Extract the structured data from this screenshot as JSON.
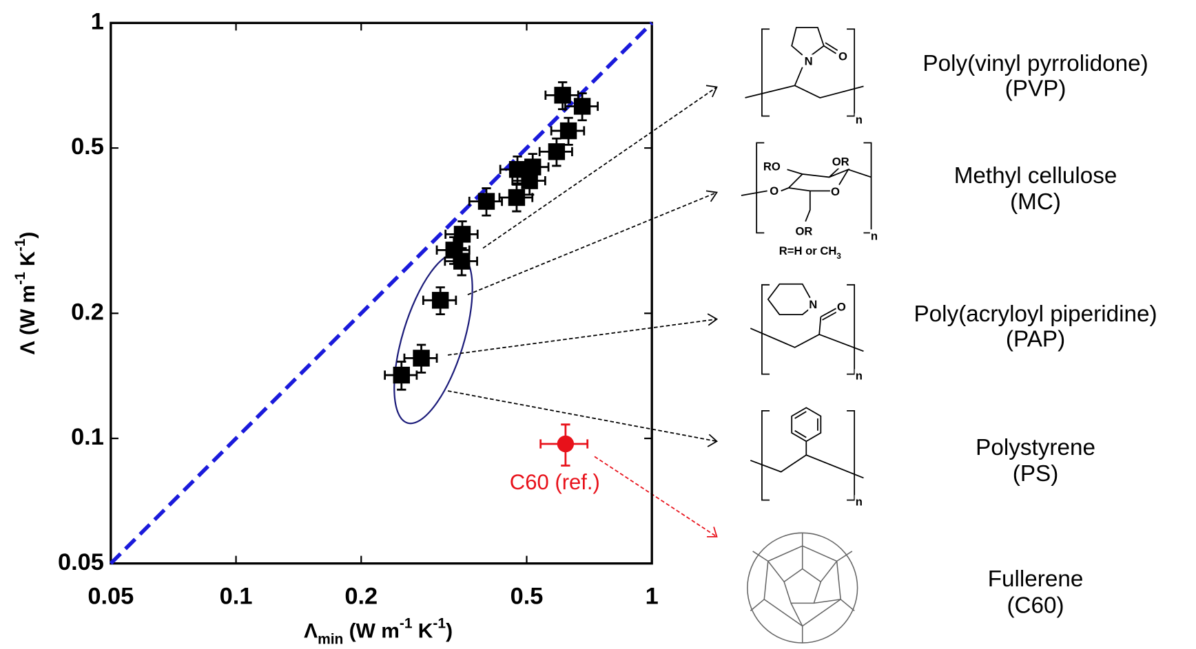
{
  "chart_data": {
    "type": "scatter",
    "log_x": true,
    "log_y": true,
    "xlim": [
      0.05,
      1
    ],
    "ylim": [
      0.05,
      1
    ],
    "xticks": [
      0.05,
      0.1,
      0.2,
      0.5,
      1
    ],
    "yticks": [
      0.05,
      0.1,
      0.2,
      0.5,
      1
    ],
    "xlabel": [
      {
        "text": "Λ"
      },
      {
        "text": "min",
        "style": "sub"
      },
      {
        "text": " (W m"
      },
      {
        "text": "-1",
        "style": "sup"
      },
      {
        "text": " K"
      },
      {
        "text": "-1",
        "style": "sup"
      },
      {
        "text": ")"
      }
    ],
    "ylabel": [
      {
        "text": "Λ (W m"
      },
      {
        "text": "-1",
        "style": "sup"
      },
      {
        "text": " K"
      },
      {
        "text": "-1",
        "style": "sup"
      },
      {
        "text": ")"
      }
    ],
    "reference_line": {
      "x": [
        0.05,
        1
      ],
      "y": [
        0.05,
        1
      ],
      "color": "#1a1adb",
      "dashed": true
    },
    "series": [
      {
        "marker": "square",
        "color": "#000000",
        "x": [
          0.25,
          0.279,
          0.31,
          0.334,
          0.349,
          0.35,
          0.4,
          0.473,
          0.475,
          0.508,
          0.517,
          0.59,
          0.63,
          0.61,
          0.68
        ],
        "xerr": [
          0.022,
          0.025,
          0.028,
          0.03,
          0.031,
          0.031,
          0.036,
          0.043,
          0.043,
          0.046,
          0.047,
          0.053,
          0.057,
          0.055,
          0.061
        ],
        "values": [
          0.142,
          0.156,
          0.215,
          0.284,
          0.267,
          0.31,
          0.372,
          0.38,
          0.444,
          0.417,
          0.45,
          0.49,
          0.55,
          0.67,
          0.63
        ],
        "yerr": [
          0.011,
          0.012,
          0.016,
          0.021,
          0.02,
          0.023,
          0.028,
          0.028,
          0.033,
          0.031,
          0.034,
          0.037,
          0.041,
          0.05,
          0.047
        ]
      },
      {
        "name": "C60 (ref.)",
        "marker": "circle",
        "color": "#e8111a",
        "x": [
          0.62
        ],
        "xerr": [
          0.08
        ],
        "values": [
          0.097
        ],
        "yerr": [
          0.011
        ]
      }
    ]
  },
  "materials": [
    {
      "name": "Poly(vinyl pyrrolidone)",
      "abbr": "(PVP)",
      "structure_labels": [
        "N",
        "O",
        "n"
      ]
    },
    {
      "name": "Methyl cellulose",
      "abbr": "(MC)",
      "structure_labels": [
        "RO",
        "OR",
        "O",
        "O",
        "OR",
        "n"
      ],
      "note": [
        {
          "text": "R=H or CH"
        },
        {
          "text": "3",
          "style": "sub"
        }
      ]
    },
    {
      "name": "Poly(acryloyl piperidine)",
      "abbr": "(PAP)",
      "structure_labels": [
        "N",
        "O",
        "n"
      ]
    },
    {
      "name": "Polystyrene",
      "abbr": "(PS)",
      "structure_labels": [
        "n"
      ]
    },
    {
      "name": "Fullerene",
      "abbr": "(C60)",
      "structure_labels": []
    }
  ]
}
